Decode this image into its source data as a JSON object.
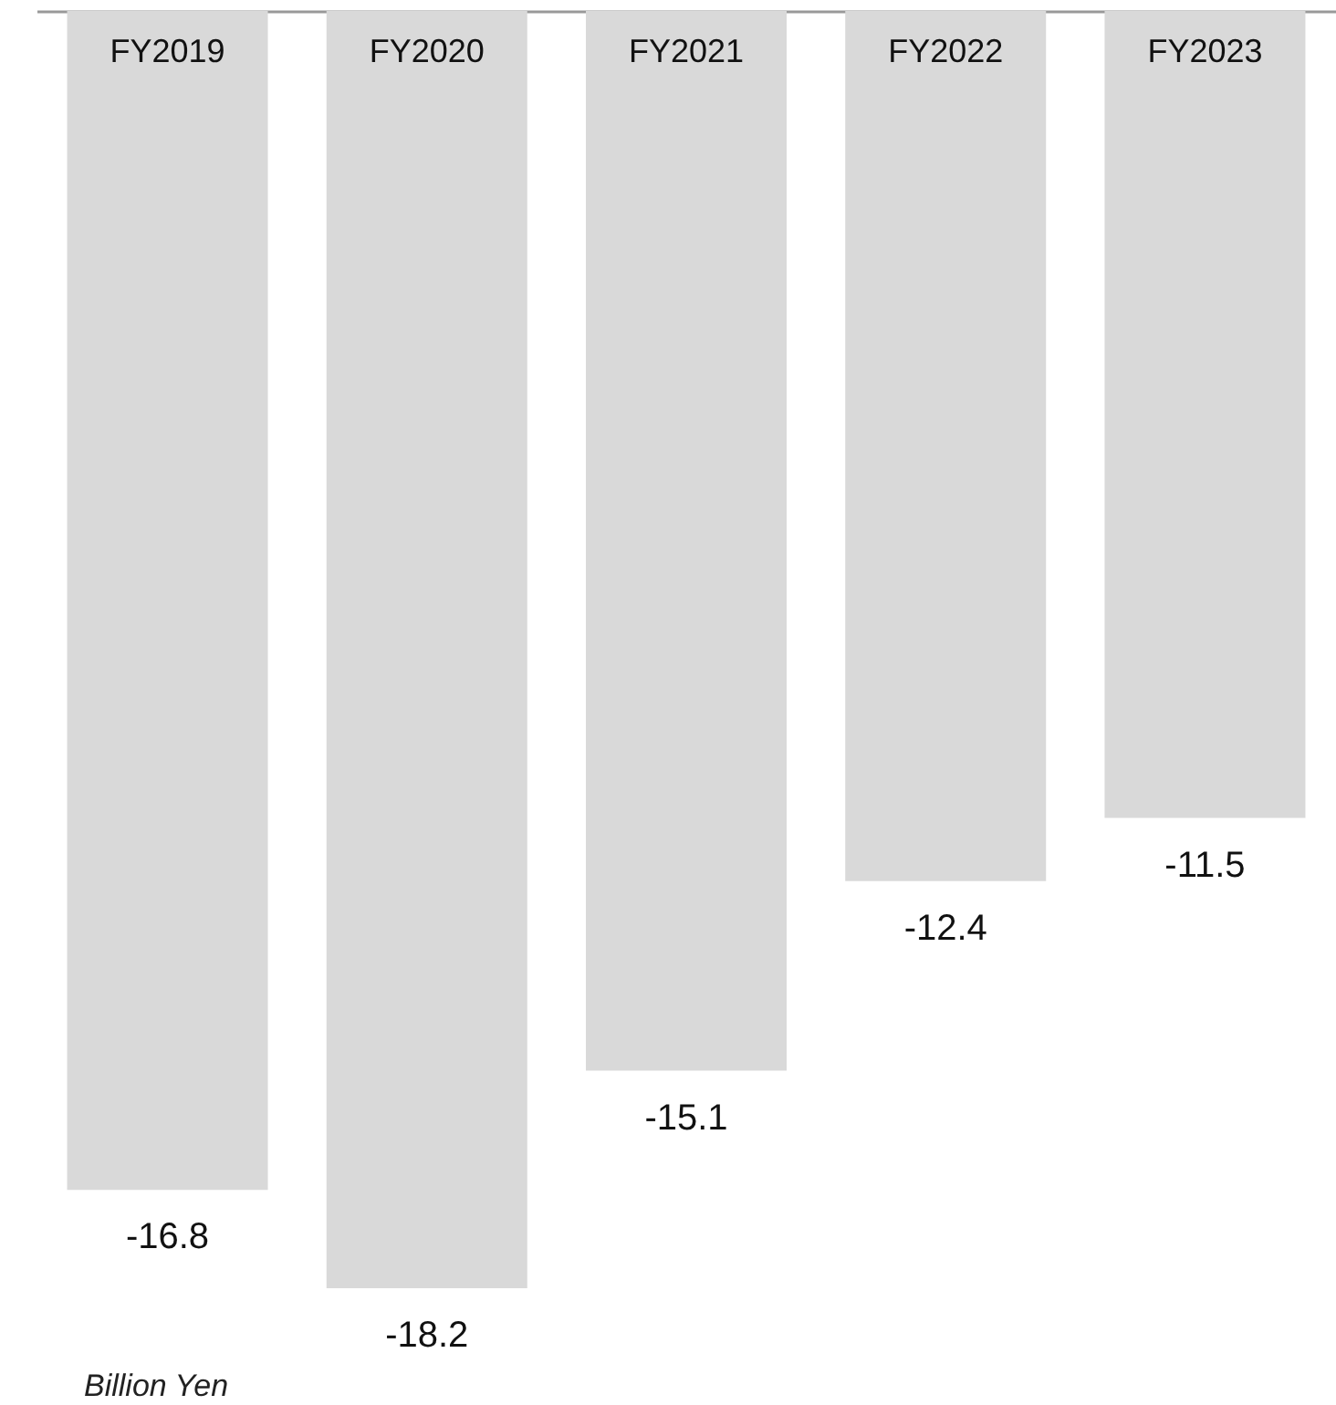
{
  "chart_data": {
    "type": "bar",
    "categories": [
      "FY2019",
      "FY2020",
      "FY2021",
      "FY2022",
      "FY2023"
    ],
    "values": [
      -16.8,
      -18.2,
      -15.1,
      -12.4,
      -11.5
    ],
    "color": "#d9d9d9",
    "data_labels": true,
    "annotations": [
      "Billion Yen"
    ]
  }
}
